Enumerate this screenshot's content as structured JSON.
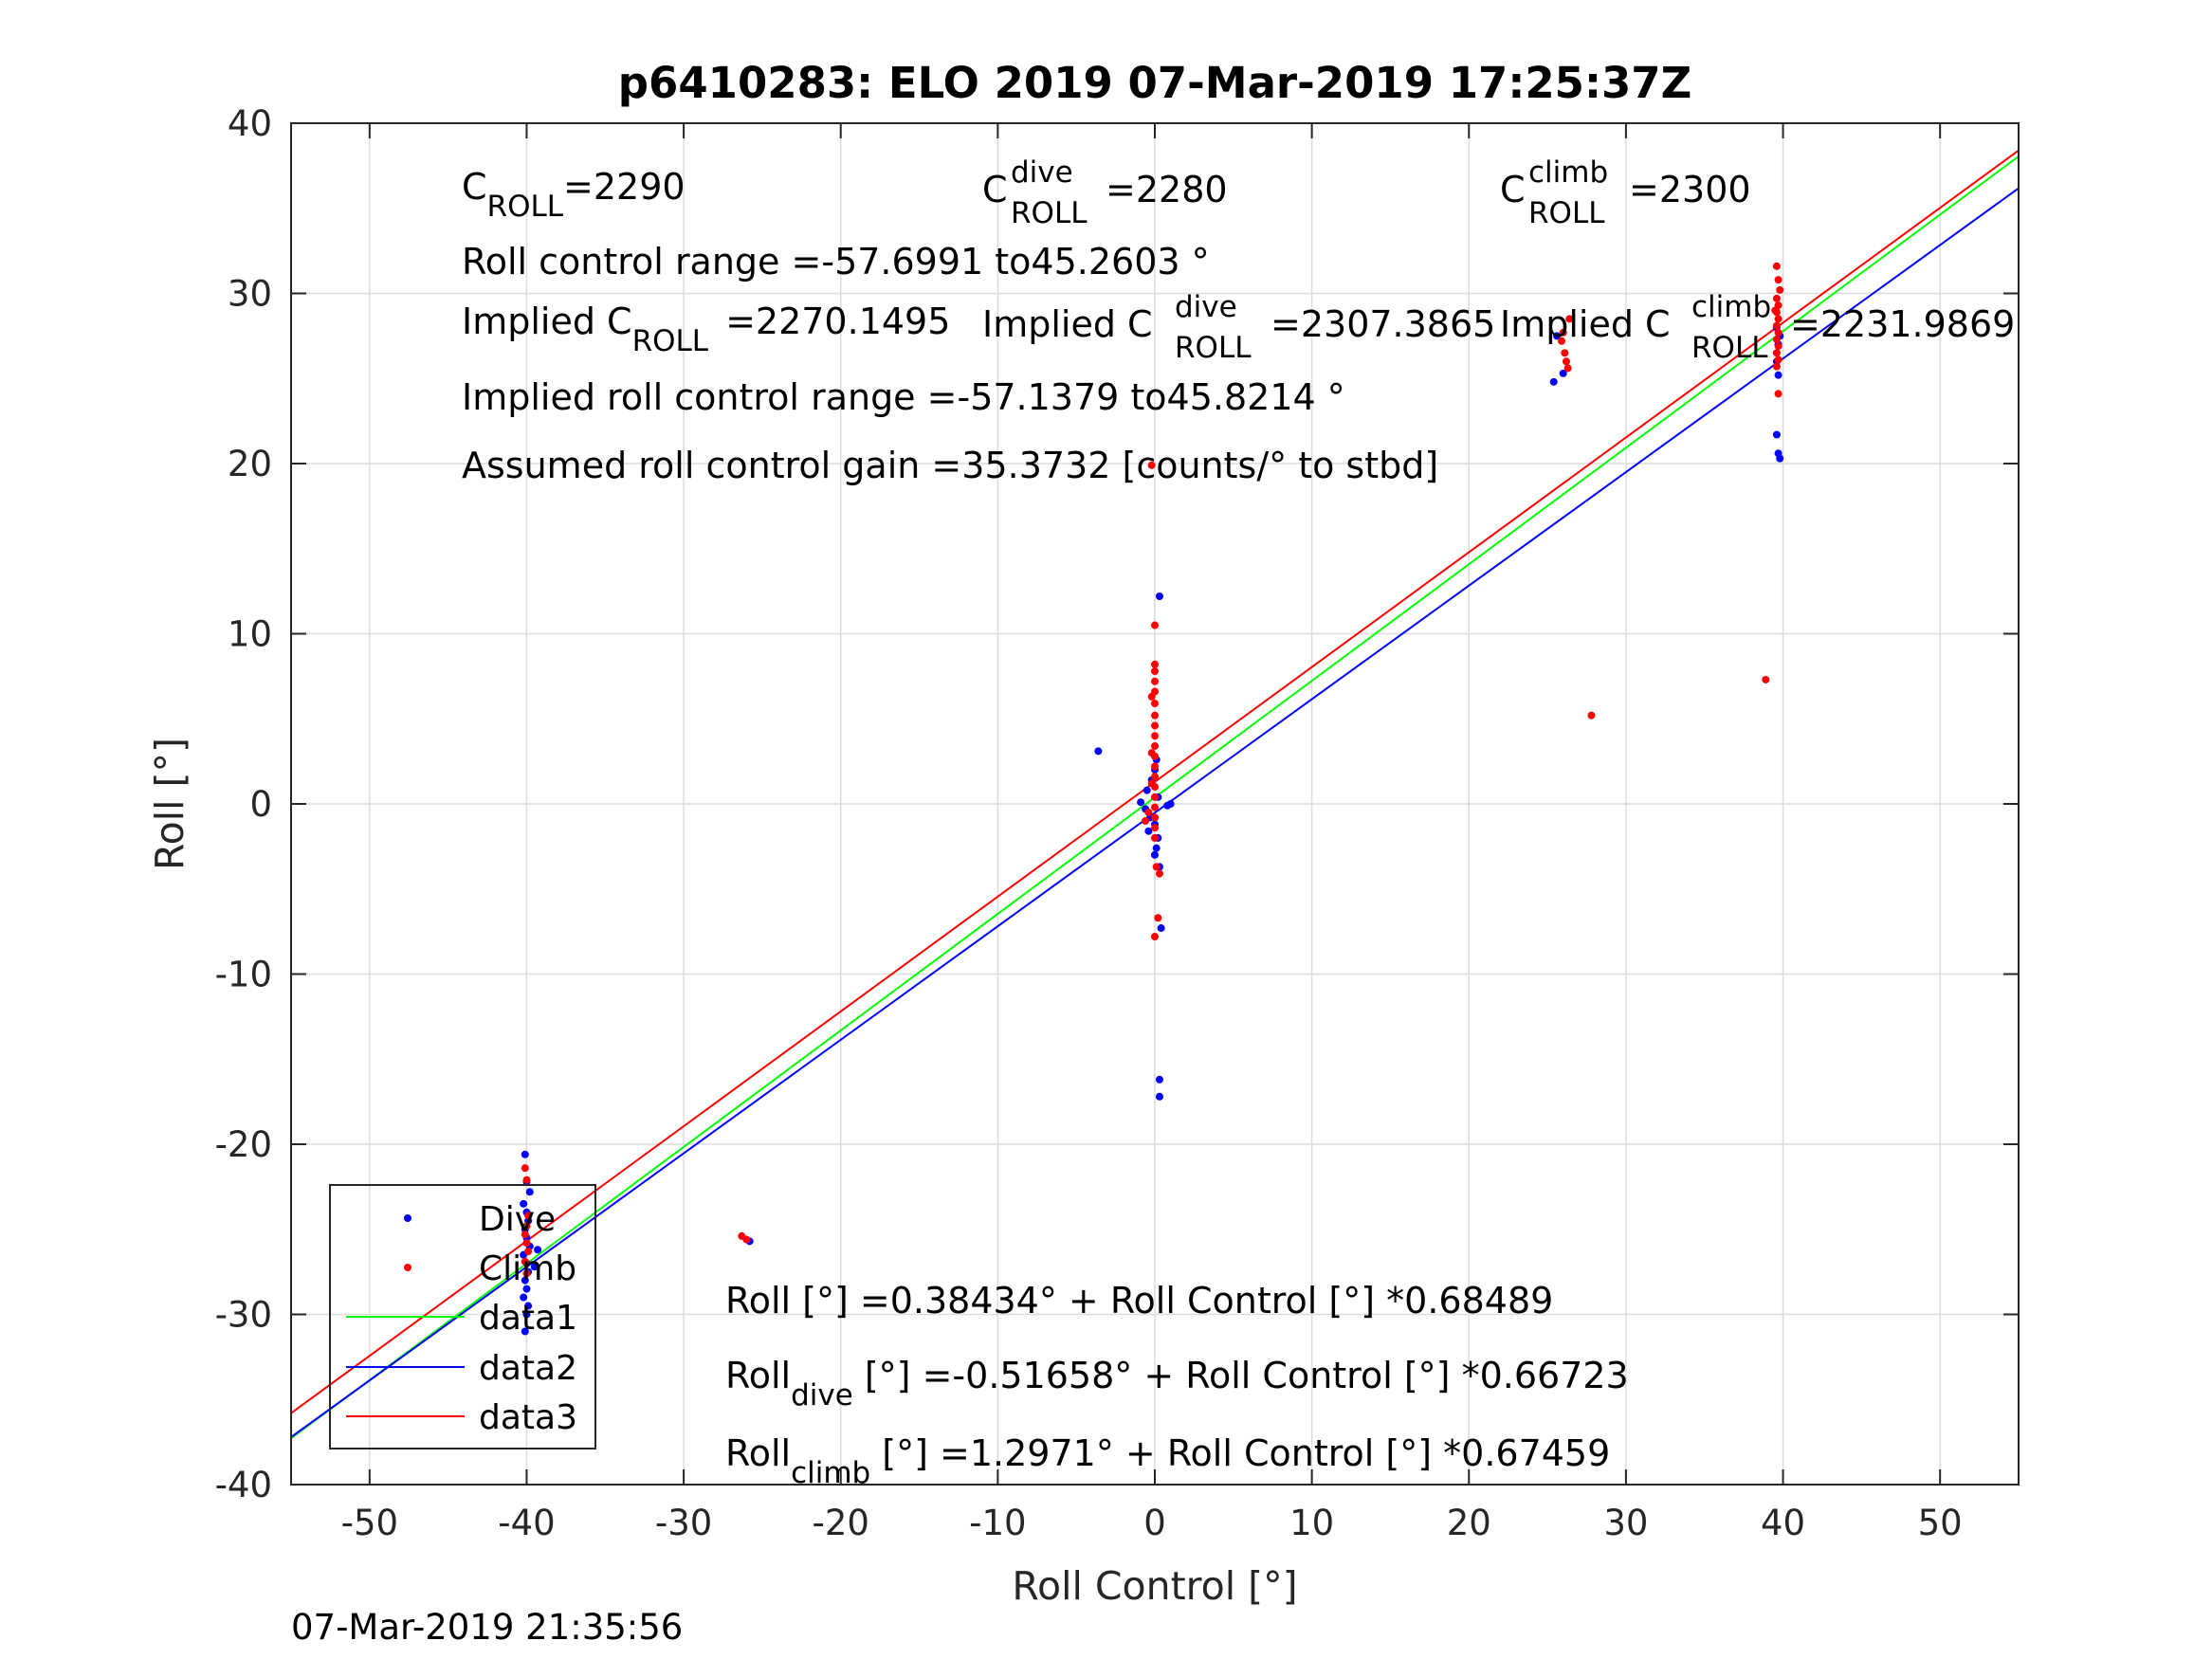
{
  "chart_data": {
    "type": "scatter",
    "title": "p6410283: ELO 2019 07-Mar-2019 17:25:37Z",
    "xlabel": "Roll Control [°]",
    "ylabel": "Roll [°]",
    "xlim": [
      -55,
      55
    ],
    "ylim": [
      -40,
      40
    ],
    "xticks": [
      -50,
      -40,
      -30,
      -20,
      -10,
      0,
      10,
      20,
      30,
      40,
      50
    ],
    "yticks": [
      -40,
      -30,
      -20,
      -10,
      0,
      10,
      20,
      30,
      40
    ],
    "grid": true,
    "legend_position": "bottom-left",
    "series": [
      {
        "name": "Dive",
        "kind": "points",
        "color": "#0000ff",
        "points": [
          [
            -40.1,
            -20.6
          ],
          [
            -40.0,
            -22.2
          ],
          [
            -39.8,
            -22.8
          ],
          [
            -40.2,
            -23.5
          ],
          [
            -40.0,
            -24.0
          ],
          [
            -39.9,
            -24.5
          ],
          [
            -40.1,
            -25.0
          ],
          [
            -40.0,
            -25.5
          ],
          [
            -39.8,
            -26.0
          ],
          [
            -40.2,
            -26.5
          ],
          [
            -40.0,
            -27.0
          ],
          [
            -39.9,
            -27.5
          ],
          [
            -40.1,
            -28.0
          ],
          [
            -40.0,
            -28.5
          ],
          [
            -40.2,
            -29.0
          ],
          [
            -39.9,
            -29.5
          ],
          [
            -40.0,
            -30.0
          ],
          [
            -40.1,
            -31.0
          ],
          [
            -39.5,
            -27.2
          ],
          [
            -39.3,
            -26.2
          ],
          [
            -25.8,
            -25.7
          ],
          [
            -3.6,
            3.1
          ],
          [
            25.6,
            27.5
          ],
          [
            25.4,
            24.8
          ],
          [
            26.0,
            25.3
          ],
          [
            39.6,
            28.0
          ],
          [
            39.7,
            27.0
          ],
          [
            39.6,
            26.0
          ],
          [
            39.7,
            25.2
          ],
          [
            39.6,
            21.7
          ],
          [
            39.7,
            20.6
          ],
          [
            39.8,
            20.3
          ],
          [
            39.8,
            27.5
          ],
          [
            0.3,
            12.2
          ],
          [
            0.1,
            2.6
          ],
          [
            0.0,
            2.0
          ],
          [
            -0.5,
            0.8
          ],
          [
            -0.2,
            1.4
          ],
          [
            0.2,
            0.4
          ],
          [
            -0.6,
            -0.3
          ],
          [
            -0.3,
            -0.8
          ],
          [
            0.0,
            -1.2
          ],
          [
            -0.4,
            -1.6
          ],
          [
            0.2,
            -2.0
          ],
          [
            0.1,
            -2.6
          ],
          [
            0.0,
            -3.0
          ],
          [
            0.3,
            -3.7
          ],
          [
            0.4,
            -7.3
          ],
          [
            0.3,
            -16.2
          ],
          [
            0.3,
            -17.2
          ],
          [
            -0.9,
            0.1
          ],
          [
            0.8,
            -0.1
          ],
          [
            1.0,
            0.0
          ]
        ]
      },
      {
        "name": "Climb",
        "kind": "points",
        "color": "#ff0000",
        "points": [
          [
            -40.1,
            -21.4
          ],
          [
            -40.0,
            -22.1
          ],
          [
            -39.9,
            -24.2
          ],
          [
            -40.0,
            -24.8
          ],
          [
            -40.1,
            -25.3
          ],
          [
            -40.0,
            -25.8
          ],
          [
            -39.9,
            -26.3
          ],
          [
            -40.1,
            -26.9
          ],
          [
            -40.0,
            -27.6
          ],
          [
            -26.3,
            -25.4
          ],
          [
            -26.0,
            -25.6
          ],
          [
            27.8,
            5.2
          ],
          [
            38.9,
            7.3
          ],
          [
            26.0,
            27.7
          ],
          [
            26.1,
            26.5
          ],
          [
            26.2,
            26.0
          ],
          [
            26.3,
            25.6
          ],
          [
            26.4,
            28.5
          ],
          [
            25.9,
            27.2
          ],
          [
            39.6,
            31.6
          ],
          [
            39.7,
            30.8
          ],
          [
            39.6,
            29.7
          ],
          [
            39.7,
            29.3
          ],
          [
            39.6,
            28.9
          ],
          [
            39.7,
            28.5
          ],
          [
            39.6,
            28.1
          ],
          [
            39.7,
            27.7
          ],
          [
            39.6,
            27.3
          ],
          [
            39.7,
            26.9
          ],
          [
            39.6,
            26.5
          ],
          [
            39.7,
            26.1
          ],
          [
            39.6,
            25.7
          ],
          [
            39.7,
            24.1
          ],
          [
            39.8,
            30.2
          ],
          [
            39.5,
            29.0
          ],
          [
            -0.2,
            19.9
          ],
          [
            0.0,
            10.5
          ],
          [
            0.0,
            8.2
          ],
          [
            0.0,
            7.8
          ],
          [
            0.0,
            7.2
          ],
          [
            0.0,
            6.6
          ],
          [
            0.0,
            5.9
          ],
          [
            0.0,
            5.2
          ],
          [
            0.0,
            4.6
          ],
          [
            0.0,
            4.0
          ],
          [
            0.0,
            3.4
          ],
          [
            0.0,
            2.8
          ],
          [
            0.0,
            2.2
          ],
          [
            0.0,
            1.6
          ],
          [
            0.0,
            1.0
          ],
          [
            0.0,
            0.4
          ],
          [
            0.0,
            -0.2
          ],
          [
            0.0,
            -0.8
          ],
          [
            0.0,
            -1.4
          ],
          [
            0.0,
            -2.0
          ],
          [
            0.1,
            -3.7
          ],
          [
            0.3,
            -4.1
          ],
          [
            0.2,
            -6.7
          ],
          [
            0.0,
            -7.8
          ],
          [
            -0.2,
            6.3
          ],
          [
            -0.2,
            3.0
          ],
          [
            -0.2,
            1.2
          ],
          [
            -0.4,
            -0.5
          ],
          [
            -0.6,
            -1.0
          ]
        ]
      },
      {
        "name": "data1",
        "kind": "line",
        "color": "#00ff00",
        "x": [
          -55,
          55
        ],
        "y": [
          -37.284,
          38.054
        ]
      },
      {
        "name": "data2",
        "kind": "line",
        "color": "#0000ff",
        "x": [
          -55,
          55
        ],
        "y": [
          -37.214,
          36.179
        ]
      },
      {
        "name": "data3",
        "kind": "line",
        "color": "#ff0000",
        "x": [
          -55,
          55
        ],
        "y": [
          -35.806,
          38.399
        ]
      }
    ],
    "annotations": {
      "c_roll": {
        "base": "C",
        "sub": "ROLL",
        "value": "=2290"
      },
      "c_roll_dive": {
        "base": "C",
        "sup": "dive",
        "sub": "ROLL",
        "value": "=2280"
      },
      "c_roll_climb": {
        "base": "C",
        "sup": "climb",
        "sub": "ROLL",
        "value": "=2300"
      },
      "roll_control_range": "Roll control range =-57.6991 to45.2603 °",
      "implied_c_roll": {
        "base": "Implied C",
        "sub": "ROLL",
        "value": "=2270.1495"
      },
      "implied_c_roll_dive": {
        "base": "Implied C",
        "sup": "dive",
        "sub": "ROLL",
        "value": "=2307.3865"
      },
      "implied_c_roll_climb": {
        "base": "Implied C",
        "sup": "climb",
        "sub": "ROLL",
        "value": "=2231.9869"
      },
      "implied_range": "Implied roll control range =-57.1379 to45.8214 °",
      "gain": "Assumed roll control gain =35.3732 [counts/° to stbd]",
      "fit_all": "Roll [°] =0.38434° + Roll Control [°] *0.68489",
      "fit_dive": {
        "base": "Roll",
        "sub": "dive",
        "value": " [°] =-0.51658° + Roll Control [°] *0.66723"
      },
      "fit_climb": {
        "base": "Roll",
        "sub": "climb",
        "value": " [°] =1.2971° + Roll Control [°] *0.67459"
      }
    },
    "timestamp": "07-Mar-2019 21:35:56"
  }
}
